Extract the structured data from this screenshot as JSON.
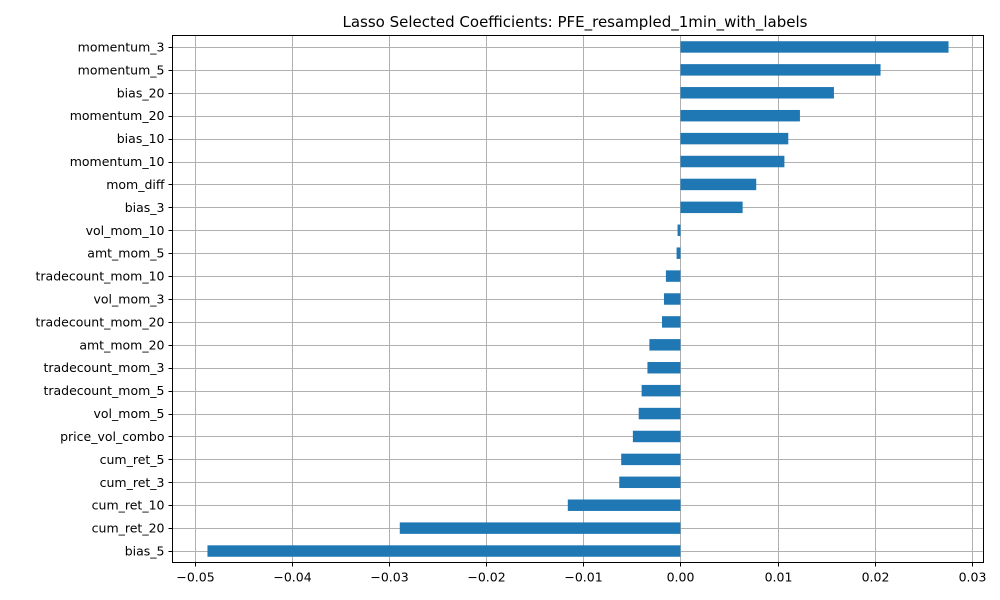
{
  "chart_data": {
    "type": "bar",
    "orientation": "horizontal",
    "title": "Lasso Selected Coefficients: PFE_resampled_1min_with_labels",
    "xlabel": "",
    "ylabel": "",
    "categories": [
      "momentum_3",
      "momentum_5",
      "bias_20",
      "momentum_20",
      "bias_10",
      "momentum_10",
      "mom_diff",
      "bias_3",
      "vol_mom_10",
      "amt_mom_5",
      "tradecount_mom_10",
      "vol_mom_3",
      "tradecount_mom_20",
      "amt_mom_20",
      "tradecount_mom_3",
      "tradecount_mom_5",
      "vol_mom_5",
      "price_vol_combo",
      "cum_ret_5",
      "cum_ret_3",
      "cum_ret_10",
      "cum_ret_20",
      "bias_5"
    ],
    "values": [
      0.0276,
      0.0206,
      0.0158,
      0.0123,
      0.0111,
      0.0107,
      0.0078,
      0.0064,
      -0.0003,
      -0.0004,
      -0.0015,
      -0.0017,
      -0.0019,
      -0.0032,
      -0.0034,
      -0.004,
      -0.0043,
      -0.0049,
      -0.0061,
      -0.0063,
      -0.0116,
      -0.0289,
      -0.0487
    ],
    "xlim": [
      -0.0523,
      0.0312
    ],
    "xticks": [
      -0.05,
      -0.04,
      -0.03,
      -0.02,
      -0.01,
      0.0,
      0.01,
      0.02,
      0.03
    ],
    "xtick_labels": [
      "−0.05",
      "−0.04",
      "−0.03",
      "−0.02",
      "−0.01",
      "0.00",
      "0.01",
      "0.02",
      "0.03"
    ],
    "grid": true,
    "bar_color": "#1f77b4",
    "grid_color": "#b0b0b0"
  }
}
